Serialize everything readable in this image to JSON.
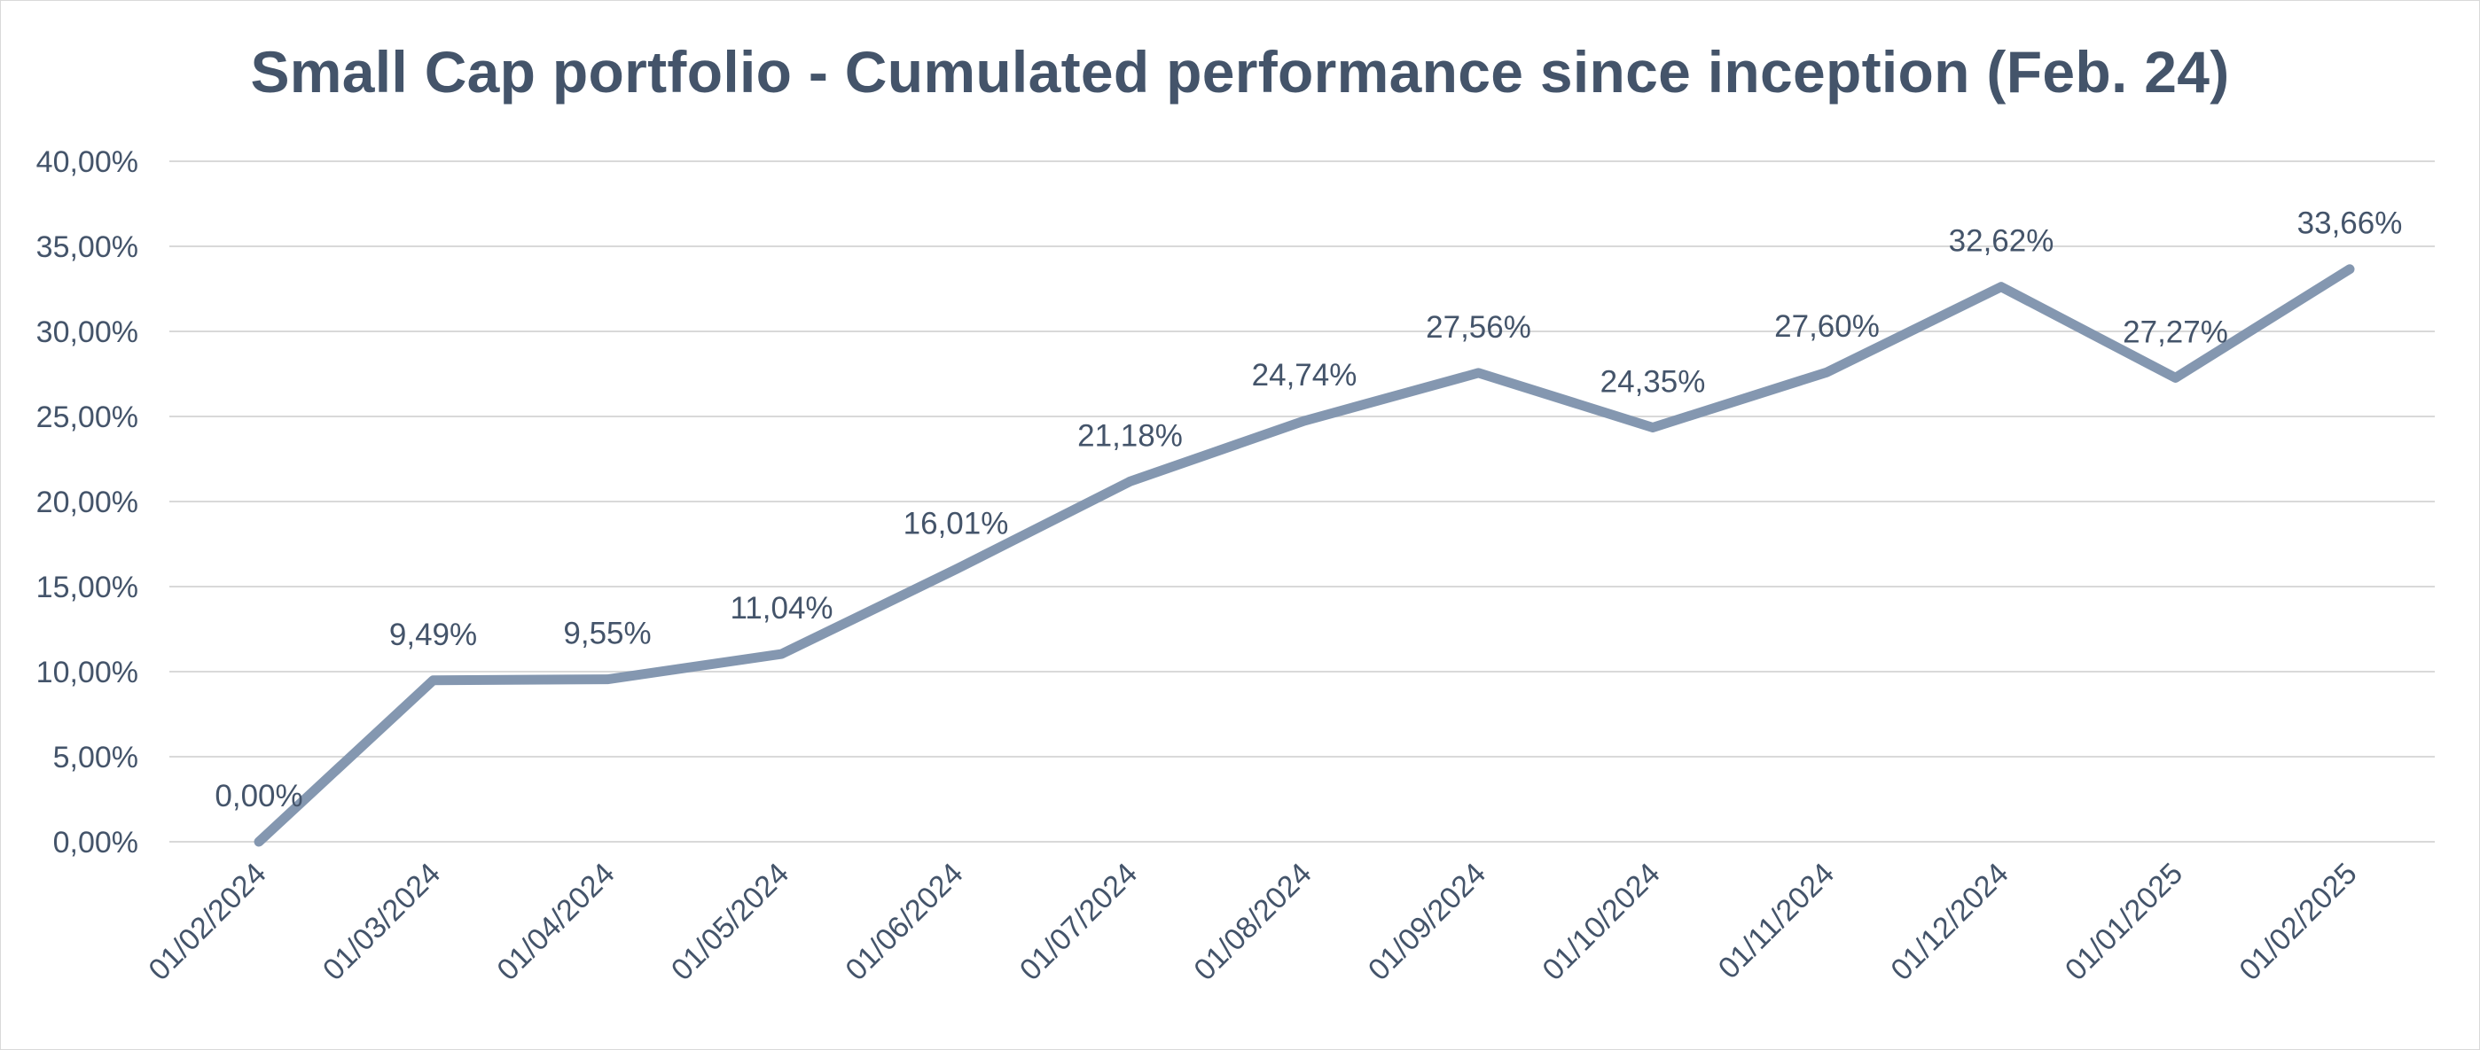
{
  "chart_data": {
    "type": "line",
    "title": "Small Cap portfolio - Cumulated performance since inception (Feb. 24)",
    "categories": [
      "01/02/2024",
      "01/03/2024",
      "01/04/2024",
      "01/05/2024",
      "01/06/2024",
      "01/07/2024",
      "01/08/2024",
      "01/09/2024",
      "01/10/2024",
      "01/11/2024",
      "01/12/2024",
      "01/01/2025",
      "01/02/2025"
    ],
    "values": [
      0.0,
      9.49,
      9.55,
      11.04,
      16.01,
      21.18,
      24.74,
      27.56,
      24.35,
      27.6,
      32.62,
      27.27,
      33.66
    ],
    "data_labels": [
      "0,00%",
      "9,49%",
      "9,55%",
      "11,04%",
      "16,01%",
      "21,18%",
      "24,74%",
      "27,56%",
      "24,35%",
      "27,60%",
      "32,62%",
      "27,27%",
      "33,66%"
    ],
    "y_ticks": [
      0,
      5,
      10,
      15,
      20,
      25,
      30,
      35,
      40
    ],
    "y_tick_labels": [
      "0,00%",
      "5,00%",
      "10,00%",
      "15,00%",
      "20,00%",
      "25,00%",
      "30,00%",
      "35,00%",
      "40,00%"
    ],
    "ylim": [
      0,
      40
    ],
    "xlabel": "",
    "ylabel": "",
    "grid": true,
    "legend": "none",
    "line_color": "#8497b0",
    "text_color": "#44546a",
    "grid_color": "#d9d9d9"
  }
}
